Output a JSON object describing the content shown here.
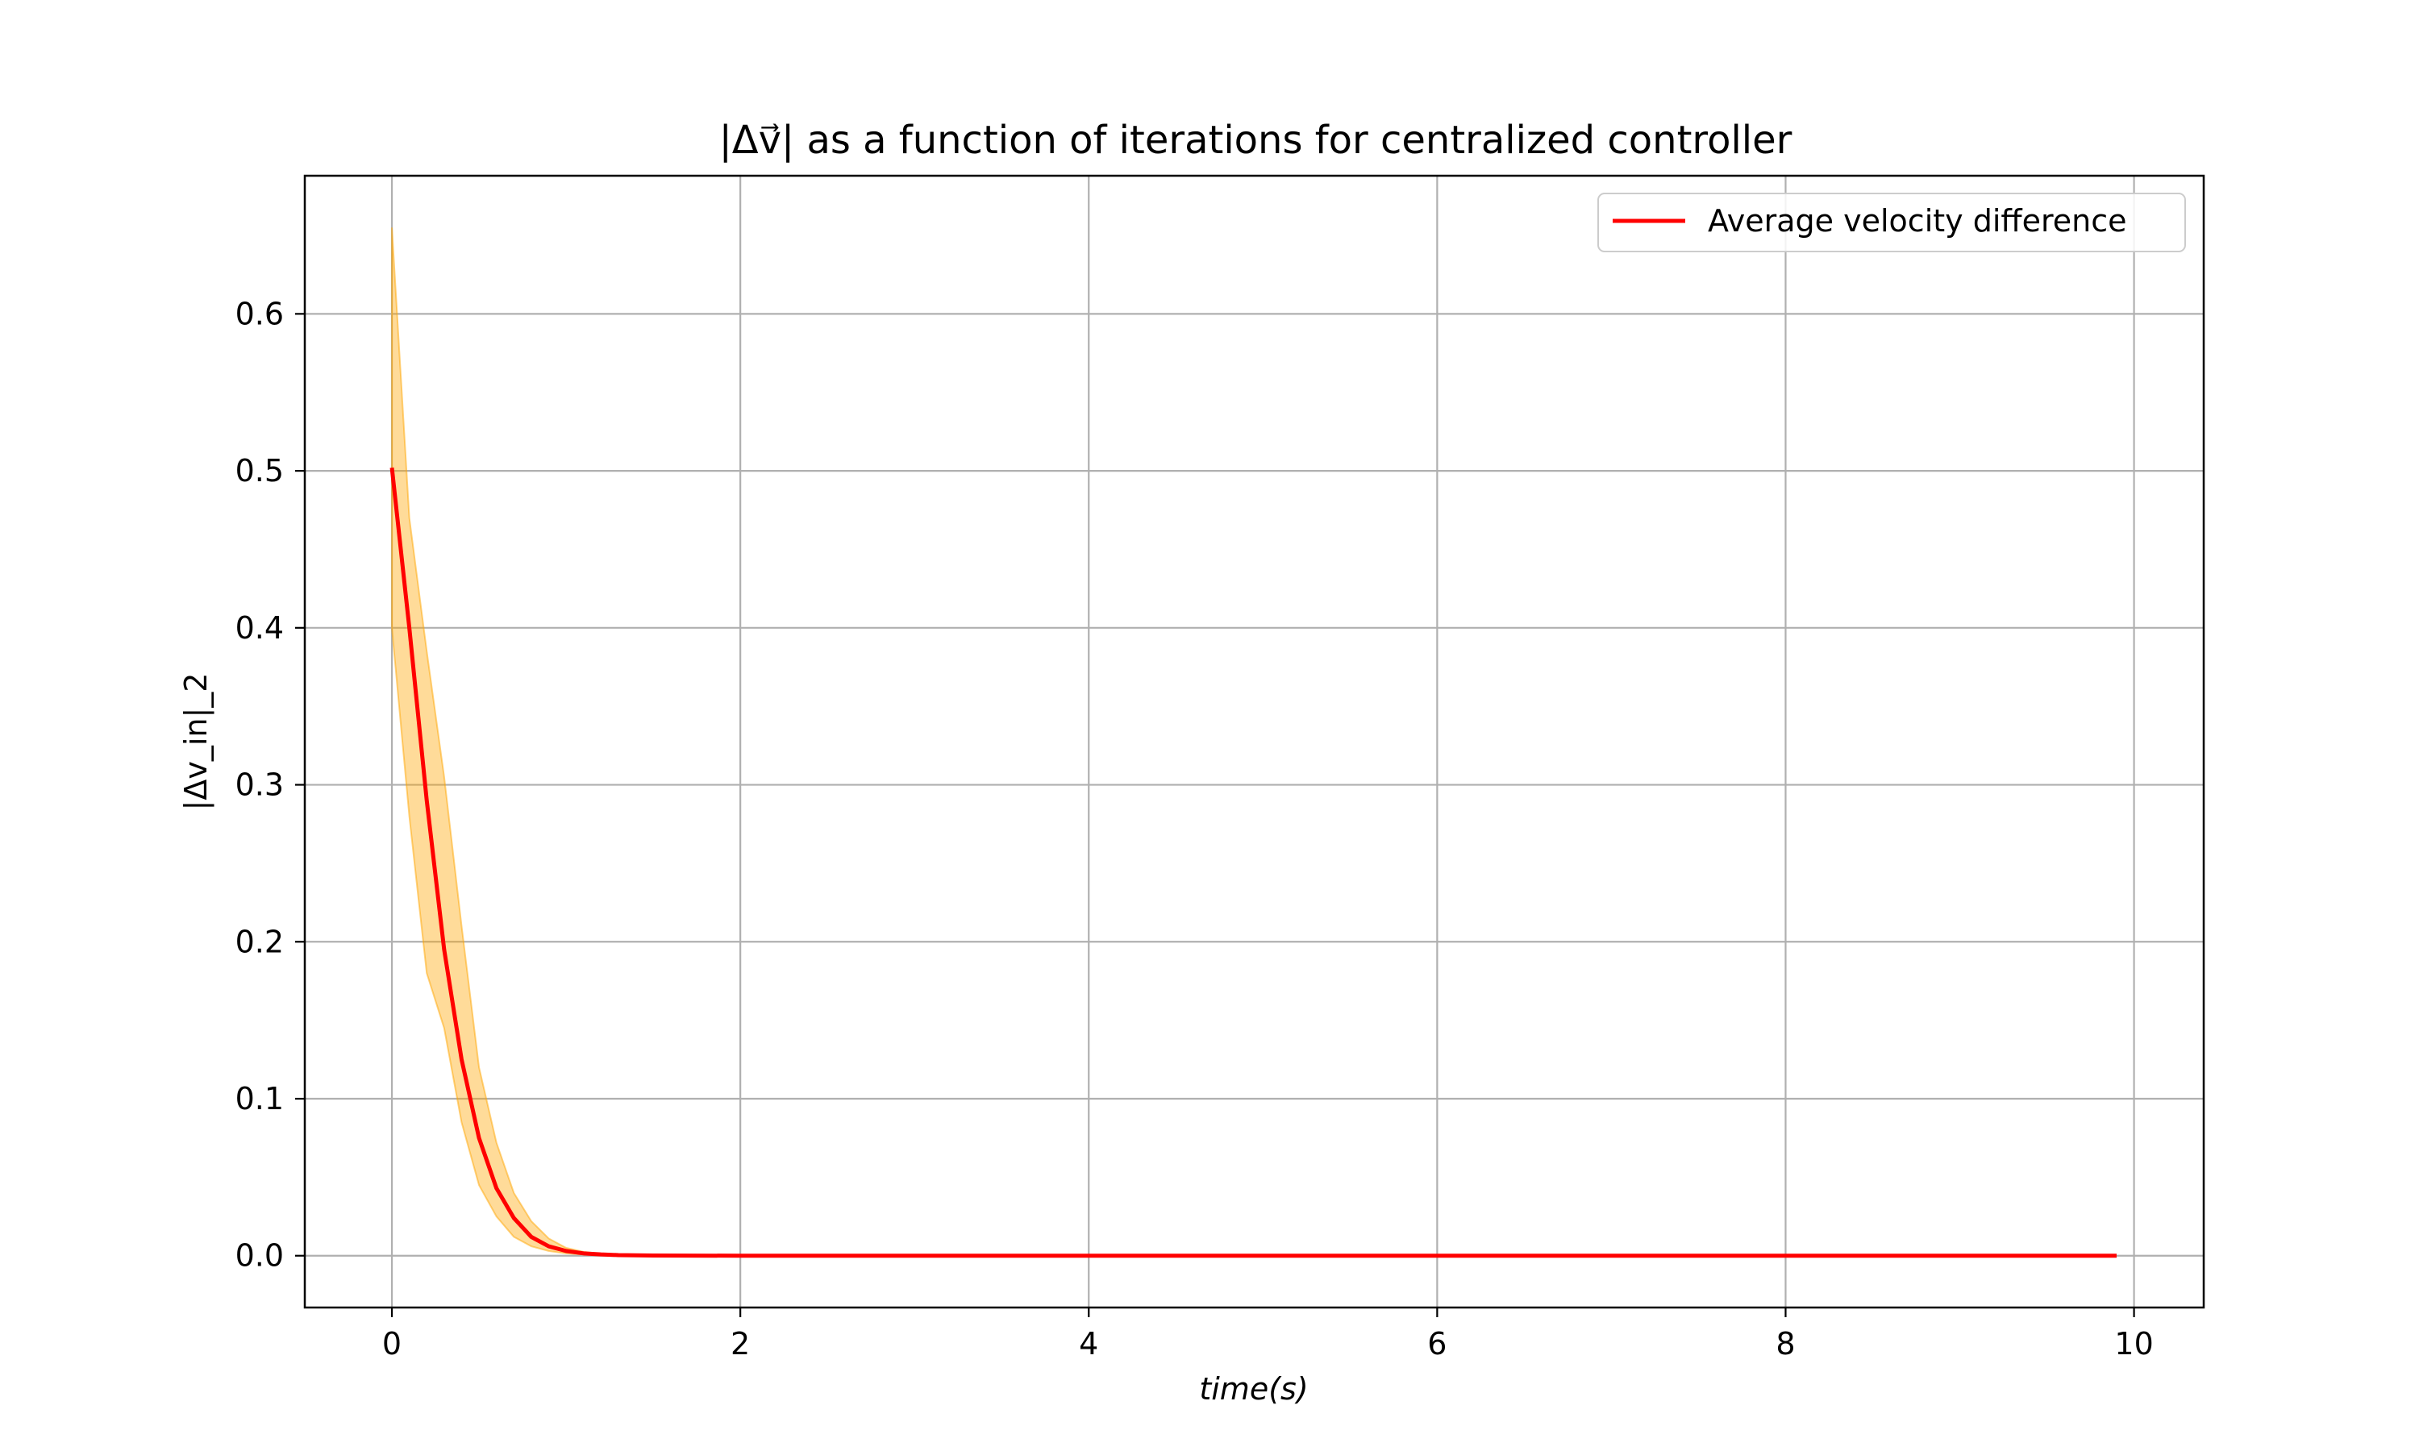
{
  "chart_data": {
    "type": "line",
    "title": "|Δv⃗| as a function of iterations for centralized controller",
    "xlabel": "time(s)",
    "ylabel": "|Δv_in|_2",
    "xlim": [
      -0.5,
      10.4
    ],
    "ylim": [
      -0.033,
      0.688
    ],
    "xticks": [
      0,
      2,
      4,
      6,
      8,
      10
    ],
    "yticks": [
      0.0,
      0.1,
      0.2,
      0.3,
      0.4,
      0.5,
      0.6
    ],
    "grid": true,
    "legend": {
      "placement": "top-right",
      "entries": [
        "Average velocity difference"
      ]
    },
    "series": [
      {
        "name": "Average velocity difference",
        "color": "#ff0000",
        "x": [
          0,
          0.1,
          0.2,
          0.3,
          0.4,
          0.5,
          0.6,
          0.7,
          0.8,
          0.9,
          1.0,
          1.1,
          1.2,
          1.3,
          1.5,
          2,
          3,
          4,
          5,
          6,
          7,
          8,
          9,
          9.9
        ],
        "y": [
          0.502,
          0.4,
          0.29,
          0.195,
          0.125,
          0.075,
          0.043,
          0.024,
          0.012,
          0.006,
          0.003,
          0.0015,
          0.0008,
          0.0004,
          0.0001,
          0,
          0,
          0,
          0,
          0,
          0,
          0,
          0,
          0
        ]
      }
    ],
    "band": {
      "color": "#ffa500",
      "opacity": 0.4,
      "x": [
        0,
        0.1,
        0.2,
        0.3,
        0.4,
        0.5,
        0.6,
        0.7,
        0.8,
        0.9,
        1.0,
        1.1,
        1.2,
        1.3,
        1.5,
        2,
        3,
        4,
        5,
        6,
        7,
        8,
        9,
        9.9
      ],
      "upper": [
        0.655,
        0.47,
        0.385,
        0.305,
        0.21,
        0.12,
        0.072,
        0.04,
        0.022,
        0.011,
        0.005,
        0.0025,
        0.0012,
        0.0006,
        0.0002,
        0,
        0,
        0,
        0,
        0,
        0,
        0,
        0,
        0
      ],
      "lower": [
        0.4,
        0.28,
        0.18,
        0.145,
        0.085,
        0.045,
        0.025,
        0.012,
        0.006,
        0.003,
        0.0015,
        0.0007,
        0.0003,
        0.0001,
        0,
        0,
        0,
        0,
        0,
        0,
        0,
        0,
        0,
        0
      ]
    }
  }
}
